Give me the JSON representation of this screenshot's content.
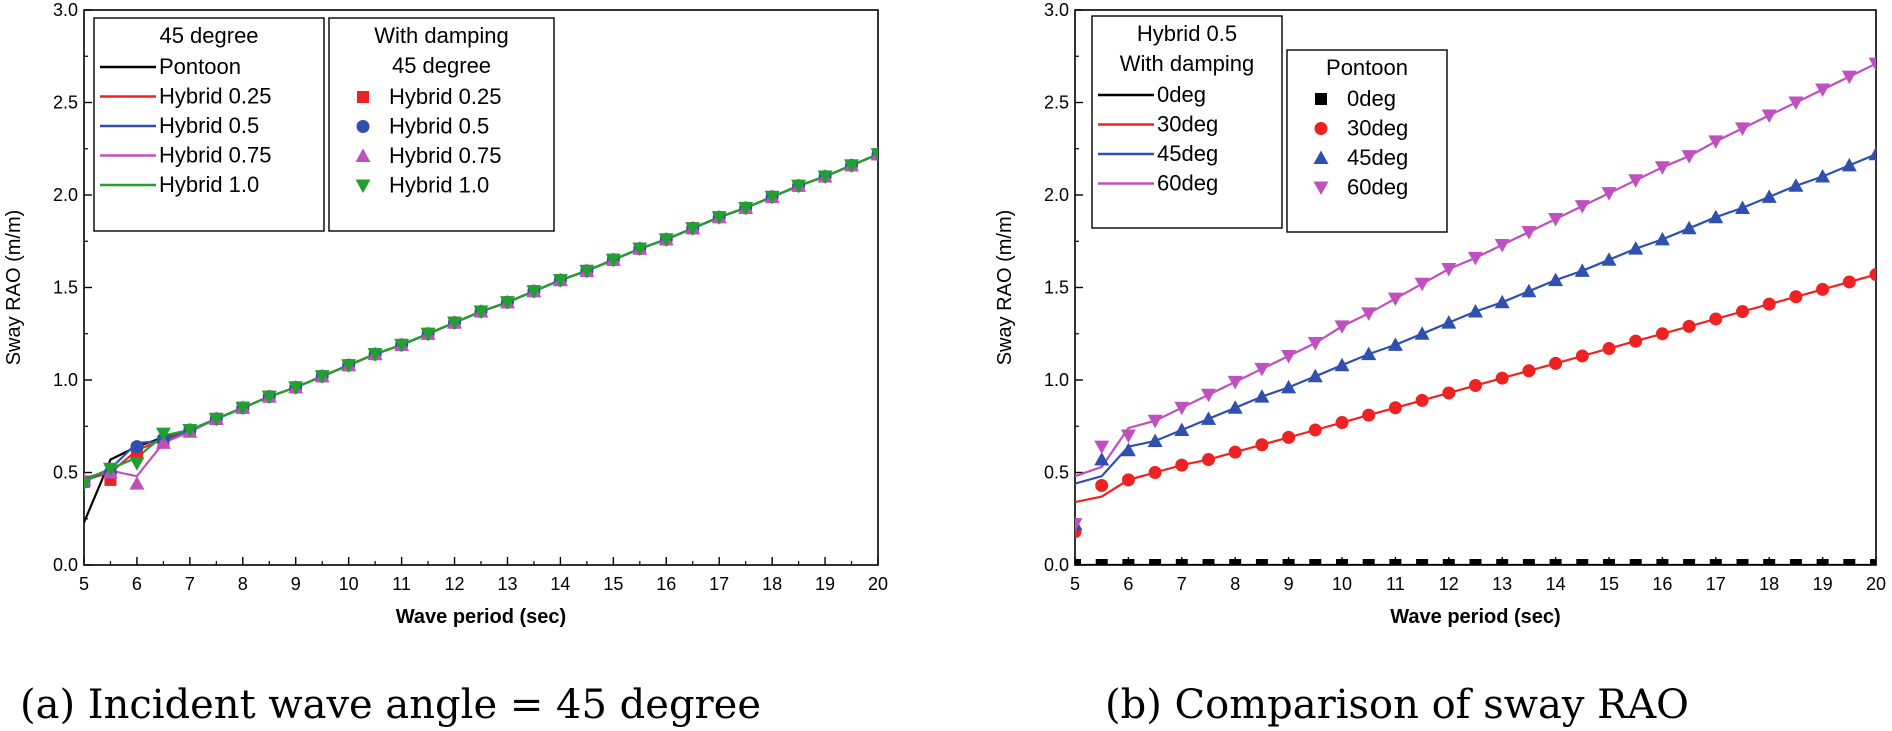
{
  "captions": {
    "a": "(a) Incident wave angle = 45 degree",
    "b": "(b) Comparison of sway RAO"
  },
  "chart_data": [
    {
      "type": "line",
      "caption": "(a) Incident wave angle = 45 degree",
      "xlabel": "Wave period (sec)",
      "ylabel": "Sway RAO (m/m)",
      "xlim": [
        5,
        20
      ],
      "ylim": [
        0,
        3.0
      ],
      "xticks": [
        "5",
        "6",
        "7",
        "8",
        "9",
        "10",
        "11",
        "12",
        "13",
        "14",
        "15",
        "16",
        "17",
        "18",
        "19",
        "20"
      ],
      "yticks": [
        "0.0",
        "0.5",
        "1.0",
        "1.5",
        "2.0",
        "2.5",
        "3.0"
      ],
      "grid": false,
      "legends": [
        {
          "title": "45 degree",
          "placement": "top-left",
          "entries": [
            {
              "label": "Pontoon",
              "color": "#000000",
              "marker": "line"
            },
            {
              "label": "Hybrid 0.25",
              "color": "#ee2222",
              "marker": "line"
            },
            {
              "label": "Hybrid 0.5",
              "color": "#3050b0",
              "marker": "line"
            },
            {
              "label": "Hybrid 0.75",
              "color": "#c050c0",
              "marker": "line"
            },
            {
              "label": "Hybrid 1.0",
              "color": "#20a030",
              "marker": "line"
            }
          ]
        },
        {
          "title": "With damping",
          "subtitle": "45 degree",
          "placement": "top-left",
          "entries": [
            {
              "label": "Hybrid 0.25",
              "color": "#ee2222",
              "marker": "square"
            },
            {
              "label": "Hybrid 0.5",
              "color": "#3050b0",
              "marker": "circle"
            },
            {
              "label": "Hybrid 0.75",
              "color": "#c050c0",
              "marker": "triangle-up"
            },
            {
              "label": "Hybrid 1.0",
              "color": "#20a030",
              "marker": "triangle-down"
            }
          ]
        }
      ],
      "x": [
        5,
        5.5,
        6,
        6.5,
        7,
        7.5,
        8,
        8.5,
        9,
        9.5,
        10,
        10.5,
        11,
        11.5,
        12,
        12.5,
        13,
        13.5,
        14,
        14.5,
        15,
        15.5,
        16,
        16.5,
        17,
        17.5,
        18,
        18.5,
        19,
        19.5,
        20
      ],
      "series": [
        {
          "name": "Pontoon",
          "style": "line",
          "color": "#000000",
          "values": [
            0.23,
            0.57,
            0.64,
            0.69,
            0.73,
            0.79,
            0.85,
            0.91,
            0.96,
            1.02,
            1.08,
            1.14,
            1.19,
            1.25,
            1.31,
            1.37,
            1.42,
            1.48,
            1.54,
            1.59,
            1.65,
            1.71,
            1.76,
            1.82,
            1.88,
            1.93,
            1.99,
            2.05,
            2.1,
            2.16,
            2.22
          ]
        },
        {
          "name": "Hybrid 0.25",
          "style": "line",
          "color": "#ee2222",
          "values": [
            0.46,
            0.5,
            0.62,
            0.68,
            0.73,
            0.79,
            0.85,
            0.91,
            0.96,
            1.02,
            1.08,
            1.14,
            1.19,
            1.25,
            1.31,
            1.37,
            1.42,
            1.48,
            1.54,
            1.59,
            1.65,
            1.71,
            1.76,
            1.82,
            1.88,
            1.93,
            1.99,
            2.05,
            2.1,
            2.16,
            2.22
          ]
        },
        {
          "name": "Hybrid 0.5",
          "style": "line",
          "color": "#3050b0",
          "values": [
            0.45,
            0.52,
            0.66,
            0.67,
            0.73,
            0.79,
            0.85,
            0.91,
            0.96,
            1.02,
            1.08,
            1.14,
            1.19,
            1.25,
            1.31,
            1.37,
            1.42,
            1.48,
            1.54,
            1.59,
            1.65,
            1.71,
            1.76,
            1.82,
            1.88,
            1.93,
            1.99,
            2.05,
            2.1,
            2.16,
            2.22
          ]
        },
        {
          "name": "Hybrid 0.75",
          "style": "line",
          "color": "#c050c0",
          "values": [
            0.47,
            0.51,
            0.48,
            0.66,
            0.72,
            0.79,
            0.85,
            0.91,
            0.96,
            1.02,
            1.08,
            1.14,
            1.19,
            1.25,
            1.31,
            1.37,
            1.42,
            1.48,
            1.54,
            1.59,
            1.65,
            1.71,
            1.76,
            1.82,
            1.88,
            1.93,
            1.99,
            2.05,
            2.1,
            2.16,
            2.22
          ]
        },
        {
          "name": "Hybrid 1.0",
          "style": "line",
          "color": "#20a030",
          "values": [
            0.46,
            0.52,
            0.58,
            0.7,
            0.73,
            0.79,
            0.85,
            0.91,
            0.96,
            1.02,
            1.08,
            1.14,
            1.19,
            1.25,
            1.31,
            1.37,
            1.42,
            1.48,
            1.54,
            1.59,
            1.65,
            1.71,
            1.76,
            1.82,
            1.88,
            1.93,
            1.99,
            2.05,
            2.1,
            2.16,
            2.22
          ]
        },
        {
          "name": "Hybrid 0.25",
          "style": "markers",
          "marker": "square",
          "color": "#ee2222",
          "values": [
            0.45,
            0.46,
            0.6,
            0.67,
            0.73,
            0.79,
            0.85,
            0.91,
            0.96,
            1.02,
            1.08,
            1.14,
            1.19,
            1.25,
            1.31,
            1.37,
            1.42,
            1.48,
            1.54,
            1.59,
            1.65,
            1.71,
            1.76,
            1.82,
            1.88,
            1.93,
            1.99,
            2.05,
            2.1,
            2.16,
            2.22
          ]
        },
        {
          "name": "Hybrid 0.5",
          "style": "markers",
          "marker": "circle",
          "color": "#3050b0",
          "values": [
            0.45,
            0.5,
            0.64,
            0.68,
            0.73,
            0.79,
            0.85,
            0.91,
            0.96,
            1.02,
            1.08,
            1.14,
            1.19,
            1.25,
            1.31,
            1.37,
            1.42,
            1.48,
            1.54,
            1.59,
            1.65,
            1.71,
            1.76,
            1.82,
            1.88,
            1.93,
            1.99,
            2.05,
            2.1,
            2.16,
            2.22
          ]
        },
        {
          "name": "Hybrid 0.75",
          "style": "markers",
          "marker": "triangle-up",
          "color": "#c050c0",
          "values": [
            0.46,
            0.5,
            0.44,
            0.66,
            0.72,
            0.79,
            0.85,
            0.91,
            0.96,
            1.02,
            1.08,
            1.14,
            1.19,
            1.25,
            1.31,
            1.37,
            1.42,
            1.48,
            1.54,
            1.59,
            1.65,
            1.71,
            1.76,
            1.82,
            1.88,
            1.93,
            1.99,
            2.05,
            2.1,
            2.16,
            2.22
          ]
        },
        {
          "name": "Hybrid 1.0",
          "style": "markers",
          "marker": "triangle-down",
          "color": "#20a030",
          "values": [
            0.44,
            0.52,
            0.55,
            0.71,
            0.73,
            0.79,
            0.85,
            0.91,
            0.96,
            1.02,
            1.08,
            1.14,
            1.19,
            1.25,
            1.31,
            1.37,
            1.42,
            1.48,
            1.54,
            1.59,
            1.65,
            1.71,
            1.76,
            1.82,
            1.88,
            1.93,
            1.99,
            2.05,
            2.1,
            2.16,
            2.22
          ]
        }
      ]
    },
    {
      "type": "line",
      "caption": "(b) Comparison of sway RAO",
      "xlabel": "Wave period (sec)",
      "ylabel": "Sway RAO (m/m)",
      "xlim": [
        5,
        20
      ],
      "ylim": [
        0,
        3.0
      ],
      "xticks": [
        "5",
        "6",
        "7",
        "8",
        "9",
        "10",
        "11",
        "12",
        "13",
        "14",
        "15",
        "16",
        "17",
        "18",
        "19",
        "20"
      ],
      "yticks": [
        "0.0",
        "0.5",
        "1.0",
        "1.5",
        "2.0",
        "2.5",
        "3.0"
      ],
      "grid": false,
      "legends": [
        {
          "title": "Hybrid 0.5",
          "subtitle": "With damping",
          "placement": "top-left",
          "entries": [
            {
              "label": "0deg",
              "color": "#000000",
              "marker": "line"
            },
            {
              "label": "30deg",
              "color": "#ee2222",
              "marker": "line"
            },
            {
              "label": "45deg",
              "color": "#3050b0",
              "marker": "line"
            },
            {
              "label": "60deg",
              "color": "#c050c0",
              "marker": "line"
            }
          ]
        },
        {
          "title": "Pontoon",
          "placement": "top-left",
          "entries": [
            {
              "label": "0deg",
              "color": "#000000",
              "marker": "square"
            },
            {
              "label": "30deg",
              "color": "#ee2222",
              "marker": "circle"
            },
            {
              "label": "45deg",
              "color": "#3050b0",
              "marker": "triangle-up"
            },
            {
              "label": "60deg",
              "color": "#c050c0",
              "marker": "triangle-down"
            }
          ]
        }
      ],
      "x": [
        5,
        5.5,
        6,
        6.5,
        7,
        7.5,
        8,
        8.5,
        9,
        9.5,
        10,
        10.5,
        11,
        11.5,
        12,
        12.5,
        13,
        13.5,
        14,
        14.5,
        15,
        15.5,
        16,
        16.5,
        17,
        17.5,
        18,
        18.5,
        19,
        19.5,
        20
      ],
      "series": [
        {
          "name": "0deg",
          "style": "line",
          "color": "#000000",
          "values": [
            0,
            0,
            0,
            0,
            0,
            0,
            0,
            0,
            0,
            0,
            0,
            0,
            0,
            0,
            0,
            0,
            0,
            0,
            0,
            0,
            0,
            0,
            0,
            0,
            0,
            0,
            0,
            0,
            0,
            0,
            0
          ]
        },
        {
          "name": "30deg",
          "style": "line",
          "color": "#ee2222",
          "values": [
            0.34,
            0.37,
            0.46,
            0.5,
            0.54,
            0.57,
            0.61,
            0.65,
            0.69,
            0.73,
            0.77,
            0.81,
            0.85,
            0.89,
            0.93,
            0.97,
            1.01,
            1.05,
            1.09,
            1.13,
            1.17,
            1.21,
            1.25,
            1.29,
            1.33,
            1.37,
            1.41,
            1.45,
            1.49,
            1.53,
            1.57
          ]
        },
        {
          "name": "45deg",
          "style": "line",
          "color": "#3050b0",
          "values": [
            0.44,
            0.48,
            0.64,
            0.67,
            0.73,
            0.79,
            0.85,
            0.91,
            0.96,
            1.02,
            1.08,
            1.14,
            1.19,
            1.25,
            1.31,
            1.37,
            1.42,
            1.48,
            1.54,
            1.59,
            1.65,
            1.71,
            1.76,
            1.82,
            1.88,
            1.93,
            1.99,
            2.05,
            2.1,
            2.16,
            2.22
          ]
        },
        {
          "name": "60deg",
          "style": "line",
          "color": "#c050c0",
          "values": [
            0.48,
            0.53,
            0.74,
            0.78,
            0.85,
            0.92,
            0.99,
            1.06,
            1.13,
            1.2,
            1.29,
            1.36,
            1.44,
            1.52,
            1.6,
            1.66,
            1.73,
            1.8,
            1.87,
            1.94,
            2.01,
            2.08,
            2.15,
            2.21,
            2.29,
            2.36,
            2.43,
            2.5,
            2.57,
            2.64,
            2.71
          ]
        },
        {
          "name": "0deg",
          "style": "markers",
          "marker": "square",
          "color": "#000000",
          "values": [
            0,
            0,
            0,
            0,
            0,
            0,
            0,
            0,
            0,
            0,
            0,
            0,
            0,
            0,
            0,
            0,
            0,
            0,
            0,
            0,
            0,
            0,
            0,
            0,
            0,
            0,
            0,
            0,
            0,
            0,
            0
          ]
        },
        {
          "name": "30deg",
          "style": "markers",
          "marker": "circle",
          "color": "#ee2222",
          "values": [
            0.18,
            0.43,
            0.46,
            0.5,
            0.54,
            0.57,
            0.61,
            0.65,
            0.69,
            0.73,
            0.77,
            0.81,
            0.85,
            0.89,
            0.93,
            0.97,
            1.01,
            1.05,
            1.09,
            1.13,
            1.17,
            1.21,
            1.25,
            1.29,
            1.33,
            1.37,
            1.41,
            1.45,
            1.49,
            1.53,
            1.57
          ]
        },
        {
          "name": "45deg",
          "style": "markers",
          "marker": "triangle-up",
          "color": "#3050b0",
          "values": [
            0.22,
            0.57,
            0.62,
            0.67,
            0.73,
            0.79,
            0.85,
            0.91,
            0.96,
            1.02,
            1.08,
            1.14,
            1.19,
            1.25,
            1.31,
            1.37,
            1.42,
            1.48,
            1.54,
            1.59,
            1.65,
            1.71,
            1.76,
            1.82,
            1.88,
            1.93,
            1.99,
            2.05,
            2.1,
            2.16,
            2.22
          ]
        },
        {
          "name": "60deg",
          "style": "markers",
          "marker": "triangle-down",
          "color": "#c050c0",
          "values": [
            0.22,
            0.64,
            0.7,
            0.78,
            0.85,
            0.92,
            0.99,
            1.06,
            1.13,
            1.2,
            1.29,
            1.36,
            1.44,
            1.52,
            1.6,
            1.66,
            1.73,
            1.8,
            1.87,
            1.94,
            2.01,
            2.08,
            2.15,
            2.21,
            2.29,
            2.36,
            2.43,
            2.5,
            2.57,
            2.64,
            2.71
          ]
        }
      ]
    }
  ]
}
